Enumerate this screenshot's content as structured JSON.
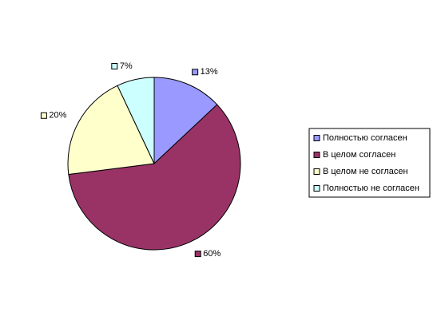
{
  "chart_data": {
    "type": "pie",
    "categories": [
      "Полностью согласен",
      "В целом согласен",
      "В целом не согласен",
      "Полностью не согласен"
    ],
    "values": [
      13,
      60,
      20,
      7
    ],
    "value_labels": [
      "13%",
      "60%",
      "20%",
      "7%"
    ],
    "colors": [
      "#9999ff",
      "#993366",
      "#ffffcc",
      "#ccffff"
    ],
    "legend": "right"
  }
}
